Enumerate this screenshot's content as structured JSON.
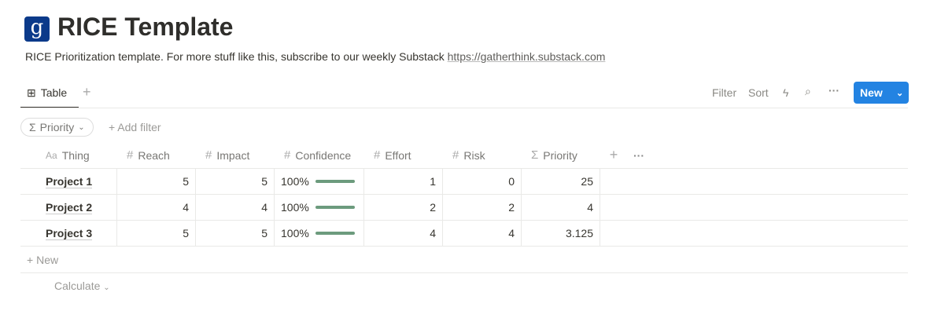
{
  "page": {
    "logo_letter": "g",
    "title": "RICE Template",
    "description": "RICE Prioritization template. For more stuff like this, subscribe to our weekly Substack ",
    "link": "https://gatherthink.substack.com"
  },
  "view": {
    "tab": "Table",
    "filter": "Filter",
    "sort": "Sort",
    "new": "New"
  },
  "filters": {
    "chip": "Priority",
    "add": "Add filter"
  },
  "table": {
    "columns": [
      "Thing",
      "Reach",
      "Impact",
      "Confidence",
      "Effort",
      "Risk",
      "Priority"
    ],
    "column_icons": [
      "Aa",
      "#",
      "#",
      "#",
      "#",
      "#",
      "Σ"
    ],
    "rows": [
      {
        "thing": "Project 1",
        "reach": "5",
        "impact": "5",
        "confidence": "100%",
        "confidence_value": 100,
        "effort": "1",
        "risk": "0",
        "priority": "25"
      },
      {
        "thing": "Project 2",
        "reach": "4",
        "impact": "4",
        "confidence": "100%",
        "confidence_value": 100,
        "effort": "2",
        "risk": "2",
        "priority": "4"
      },
      {
        "thing": "Project 3",
        "reach": "5",
        "impact": "5",
        "confidence": "100%",
        "confidence_value": 100,
        "effort": "4",
        "risk": "4",
        "priority": "3.125"
      }
    ],
    "new_row": "New",
    "calculate": "Calculate"
  },
  "colors": {
    "accent": "#2383e2",
    "progress": "#6c9b7d",
    "logo": "#0b3a8a"
  }
}
